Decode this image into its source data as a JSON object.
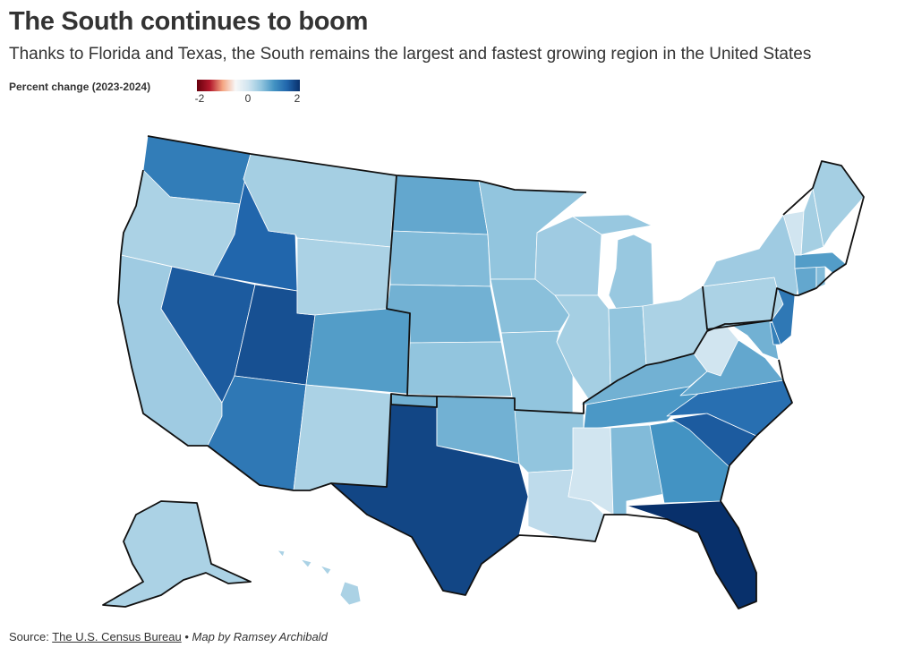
{
  "header": {
    "title": "The South continues to boom",
    "subtitle": "Thanks to Florida and Texas, the South remains the largest and fastest growing region in the United States"
  },
  "legend": {
    "title": "Percent change (2023-2024)",
    "ticks": [
      "-2",
      "0",
      "2"
    ],
    "min": -2,
    "max": 2,
    "colors": [
      "#67000d",
      "#b2182b",
      "#f4a582",
      "#f7f7f7",
      "#d1e5f0",
      "#92c5de",
      "#4393c3",
      "#2166ac",
      "#08306b"
    ]
  },
  "map_data": {
    "states": [
      {
        "name": "Washington",
        "value": 1.25
      },
      {
        "name": "Oregon",
        "value": 0.3
      },
      {
        "name": "California",
        "value": 0.4
      },
      {
        "name": "Idaho",
        "value": 1.5
      },
      {
        "name": "Nevada",
        "value": 1.6
      },
      {
        "name": "Utah",
        "value": 1.7
      },
      {
        "name": "Arizona",
        "value": 1.3
      },
      {
        "name": "Montana",
        "value": 0.35
      },
      {
        "name": "Wyoming",
        "value": 0.3
      },
      {
        "name": "Colorado",
        "value": 0.9
      },
      {
        "name": "New Mexico",
        "value": 0.3
      },
      {
        "name": "North Dakota",
        "value": 0.8
      },
      {
        "name": "South Dakota",
        "value": 0.6
      },
      {
        "name": "Nebraska",
        "value": 0.7
      },
      {
        "name": "Kansas",
        "value": 0.5
      },
      {
        "name": "Minnesota",
        "value": 0.5
      },
      {
        "name": "Iowa",
        "value": 0.55
      },
      {
        "name": "Missouri",
        "value": 0.5
      },
      {
        "name": "Wisconsin",
        "value": 0.4
      },
      {
        "name": "Illinois",
        "value": 0.35
      },
      {
        "name": "Michigan",
        "value": 0.45
      },
      {
        "name": "Indiana",
        "value": 0.5
      },
      {
        "name": "Ohio",
        "value": 0.3
      },
      {
        "name": "Texas",
        "value": 1.8
      },
      {
        "name": "Oklahoma",
        "value": 0.7
      },
      {
        "name": "Arkansas",
        "value": 0.5
      },
      {
        "name": "Louisiana",
        "value": 0.15
      },
      {
        "name": "Mississippi",
        "value": 0.0
      },
      {
        "name": "Alabama",
        "value": 0.6
      },
      {
        "name": "Tennessee",
        "value": 0.95
      },
      {
        "name": "Kentucky",
        "value": 0.7
      },
      {
        "name": "Georgia",
        "value": 1.0
      },
      {
        "name": "Florida",
        "value": 2.0
      },
      {
        "name": "South Carolina",
        "value": 1.6
      },
      {
        "name": "North Carolina",
        "value": 1.4
      },
      {
        "name": "Virginia",
        "value": 0.8
      },
      {
        "name": "West Virginia",
        "value": 0.0
      },
      {
        "name": "Maryland",
        "value": 0.7
      },
      {
        "name": "Delaware",
        "value": 1.2
      },
      {
        "name": "Pennsylvania",
        "value": 0.3
      },
      {
        "name": "New Jersey",
        "value": 1.3
      },
      {
        "name": "New York",
        "value": 0.4
      },
      {
        "name": "Connecticut",
        "value": 0.8
      },
      {
        "name": "Rhode Island",
        "value": 0.6
      },
      {
        "name": "Massachusetts",
        "value": 0.9
      },
      {
        "name": "Vermont",
        "value": 0.0
      },
      {
        "name": "New Hampshire",
        "value": 0.35
      },
      {
        "name": "Maine",
        "value": 0.35
      },
      {
        "name": "Alaska",
        "value": 0.3
      },
      {
        "name": "Hawaii",
        "value": 0.3
      }
    ]
  },
  "footer": {
    "source_label": "Source:",
    "source_link": "The U.S. Census Bureau",
    "separator": "•",
    "credit": "Map by Ramsey Archibald"
  }
}
